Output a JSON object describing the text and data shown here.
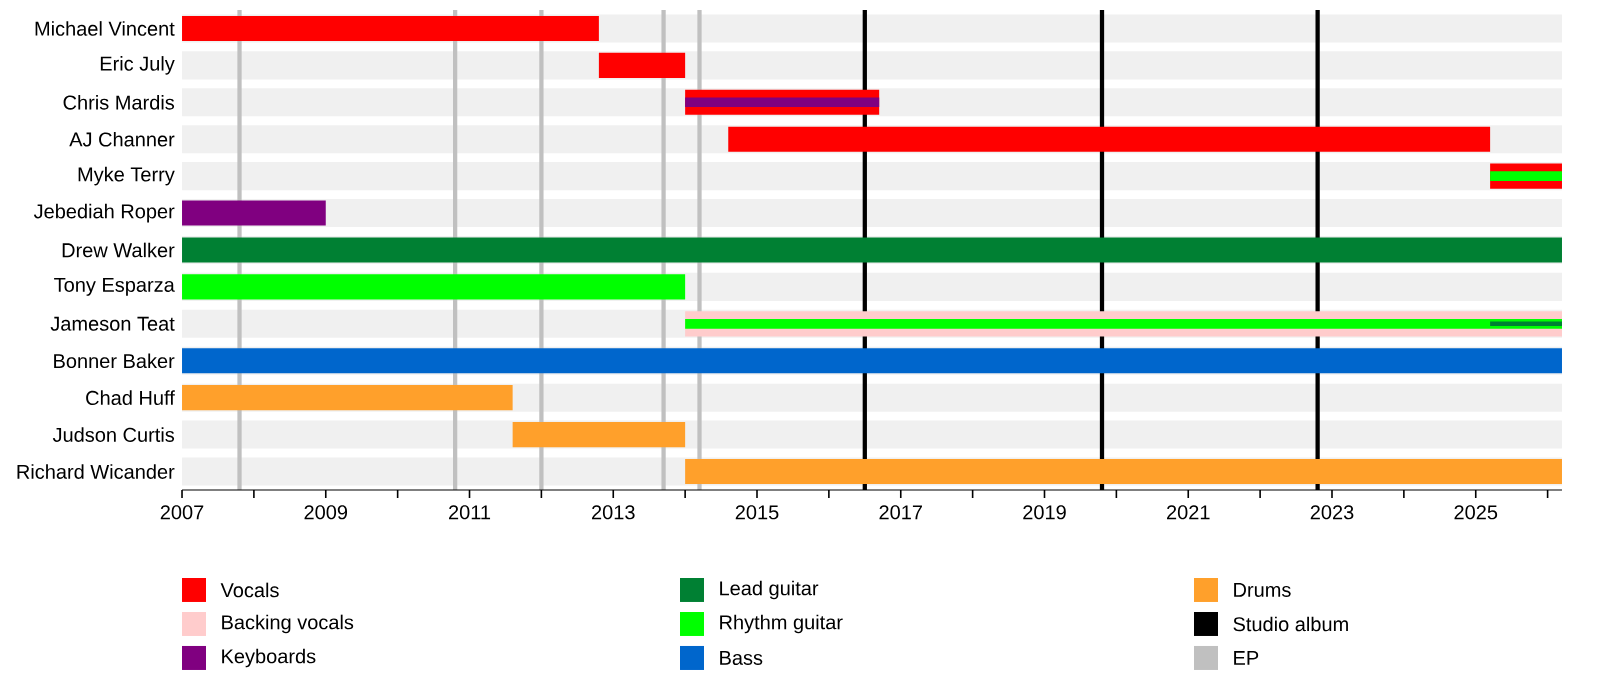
{
  "chart_data": {
    "type": "bar",
    "orientation": "horizontal",
    "legend": "bottom",
    "grid": false,
    "categories": [
      "Michael Vincent",
      "Eric July",
      "Chris Mardis",
      "AJ Channer",
      "Myke Terry",
      "Jebediah Roper",
      "Drew Walker",
      "Tony Esparza",
      "Jameson Teat",
      "Bonner Baker",
      "Chad Huff",
      "Judson Curtis",
      "Richard Wicander"
    ],
    "series": [
      {
        "name": "Vocals",
        "color": "#ff0000",
        "base": [
          2007,
          2012.8,
          2014.0,
          2014.6,
          2025.2,
          null,
          null,
          null,
          null,
          null,
          null,
          null,
          null
        ],
        "values": [
          5.8,
          1.2,
          2.7,
          10.6,
          1.0,
          null,
          null,
          null,
          null,
          null,
          null,
          null,
          null
        ]
      },
      {
        "name": "Backing vocals",
        "color": "#ffcccc",
        "base": [
          null,
          null,
          null,
          null,
          null,
          null,
          null,
          null,
          2014.0,
          null,
          null,
          null,
          null
        ],
        "values": [
          null,
          null,
          null,
          null,
          null,
          null,
          null,
          null,
          12.2,
          null,
          null,
          null,
          null
        ]
      },
      {
        "name": "Keyboards",
        "color": "#800080",
        "base": [
          null,
          null,
          2014.0,
          null,
          null,
          2007,
          null,
          null,
          null,
          null,
          null,
          null,
          null
        ],
        "values": [
          null,
          null,
          2.7,
          null,
          null,
          2.0,
          null,
          null,
          null,
          null,
          null,
          null,
          null
        ]
      },
      {
        "name": "Lead guitar",
        "color": "#008033",
        "base": [
          null,
          null,
          null,
          null,
          null,
          null,
          2007,
          null,
          2025.2,
          null,
          null,
          null,
          null
        ],
        "values": [
          null,
          null,
          null,
          null,
          null,
          null,
          19.2,
          null,
          1.0,
          null,
          null,
          null,
          null
        ]
      },
      {
        "name": "Rhythm guitar",
        "color": "#00ff00",
        "base": [
          null,
          null,
          null,
          null,
          2025.2,
          null,
          null,
          2007,
          2014.0,
          null,
          null,
          null,
          null
        ],
        "values": [
          null,
          null,
          null,
          null,
          1.0,
          null,
          null,
          7.0,
          12.2,
          null,
          null,
          null,
          null
        ]
      },
      {
        "name": "Bass",
        "color": "#0066cc",
        "base": [
          null,
          null,
          null,
          null,
          null,
          null,
          null,
          null,
          null,
          2007,
          null,
          null,
          null
        ],
        "values": [
          null,
          null,
          null,
          null,
          null,
          null,
          null,
          null,
          null,
          19.2,
          null,
          null,
          null
        ]
      },
      {
        "name": "Drums",
        "color": "#ffa02b",
        "base": [
          null,
          null,
          null,
          null,
          null,
          null,
          null,
          null,
          null,
          null,
          2007,
          2011.6,
          2014.0
        ],
        "values": [
          null,
          null,
          null,
          null,
          null,
          null,
          null,
          null,
          null,
          null,
          4.6,
          2.4,
          12.2
        ]
      }
    ],
    "ref_lines": [
      {
        "axis": "x",
        "value": 2016.5,
        "label": "Studio album",
        "color": "#000000"
      },
      {
        "axis": "x",
        "value": 2019.8,
        "color": "#000000"
      },
      {
        "axis": "x",
        "value": 2022.8,
        "color": "#000000"
      },
      {
        "axis": "x",
        "value": 2007.8,
        "label": "EP",
        "color": "#c0c0c0"
      },
      {
        "axis": "x",
        "value": 2010.8,
        "color": "#c0c0c0"
      },
      {
        "axis": "x",
        "value": 2012.0,
        "color": "#c0c0c0"
      },
      {
        "axis": "x",
        "value": 2013.7,
        "color": "#c0c0c0"
      },
      {
        "axis": "x",
        "value": 2014.2,
        "color": "#c0c0c0"
      }
    ],
    "xlim": [
      2007,
      2026.2
    ],
    "xticks": [
      2007,
      {
        "value": 2008,
        "label": null
      },
      2009,
      {
        "value": 2010,
        "label": null
      },
      2011,
      {
        "value": 2012,
        "label": null
      },
      2013,
      {
        "value": 2014,
        "label": null
      },
      2015,
      {
        "value": 2016,
        "label": null
      },
      2017,
      {
        "value": 2018,
        "label": null
      },
      2019,
      {
        "value": 2020,
        "label": null
      },
      2021,
      {
        "value": 2022,
        "label": null
      },
      2023,
      {
        "value": 2024,
        "label": null
      },
      2025,
      {
        "value": 2026,
        "label": null
      }
    ]
  }
}
